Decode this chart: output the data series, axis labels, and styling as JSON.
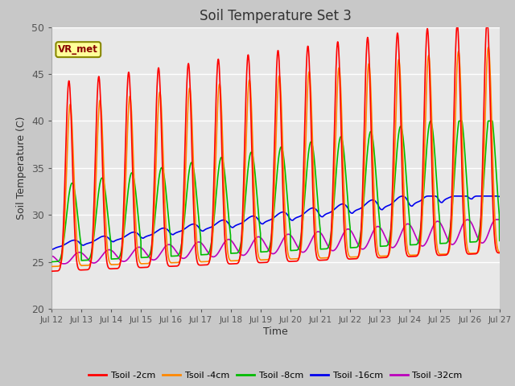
{
  "title": "Soil Temperature Set 3",
  "xlabel": "Time",
  "ylabel": "Soil Temperature (C)",
  "xlim": [
    0,
    15
  ],
  "ylim": [
    20,
    50
  ],
  "yticks": [
    20,
    25,
    30,
    35,
    40,
    45,
    50
  ],
  "xtick_labels": [
    "Jul 12",
    "Jul 13",
    "Jul 14",
    "Jul 15",
    "Jul 16",
    "Jul 17",
    "Jul 18",
    "Jul 19",
    "Jul 20",
    "Jul 21",
    "Jul 22",
    "Jul 23",
    "Jul 24",
    "Jul 25",
    "Jul 26",
    "Jul 27"
  ],
  "series": [
    {
      "label": "Tsoil -2cm",
      "color": "#ff0000",
      "lw": 1.2
    },
    {
      "label": "Tsoil -4cm",
      "color": "#ff8800",
      "lw": 1.2
    },
    {
      "label": "Tsoil -8cm",
      "color": "#00bb00",
      "lw": 1.2
    },
    {
      "label": "Tsoil -16cm",
      "color": "#0000ee",
      "lw": 1.2
    },
    {
      "label": "Tsoil -32cm",
      "color": "#bb00bb",
      "lw": 1.2
    }
  ],
  "fig_bg_color": "#c8c8c8",
  "plot_bg_color": "#e8e8e8",
  "grid_color": "#ffffff",
  "legend_box_face": "#ffff99",
  "legend_box_edge": "#888800",
  "annotation_text": "VR_met",
  "annotation_color": "#880000"
}
